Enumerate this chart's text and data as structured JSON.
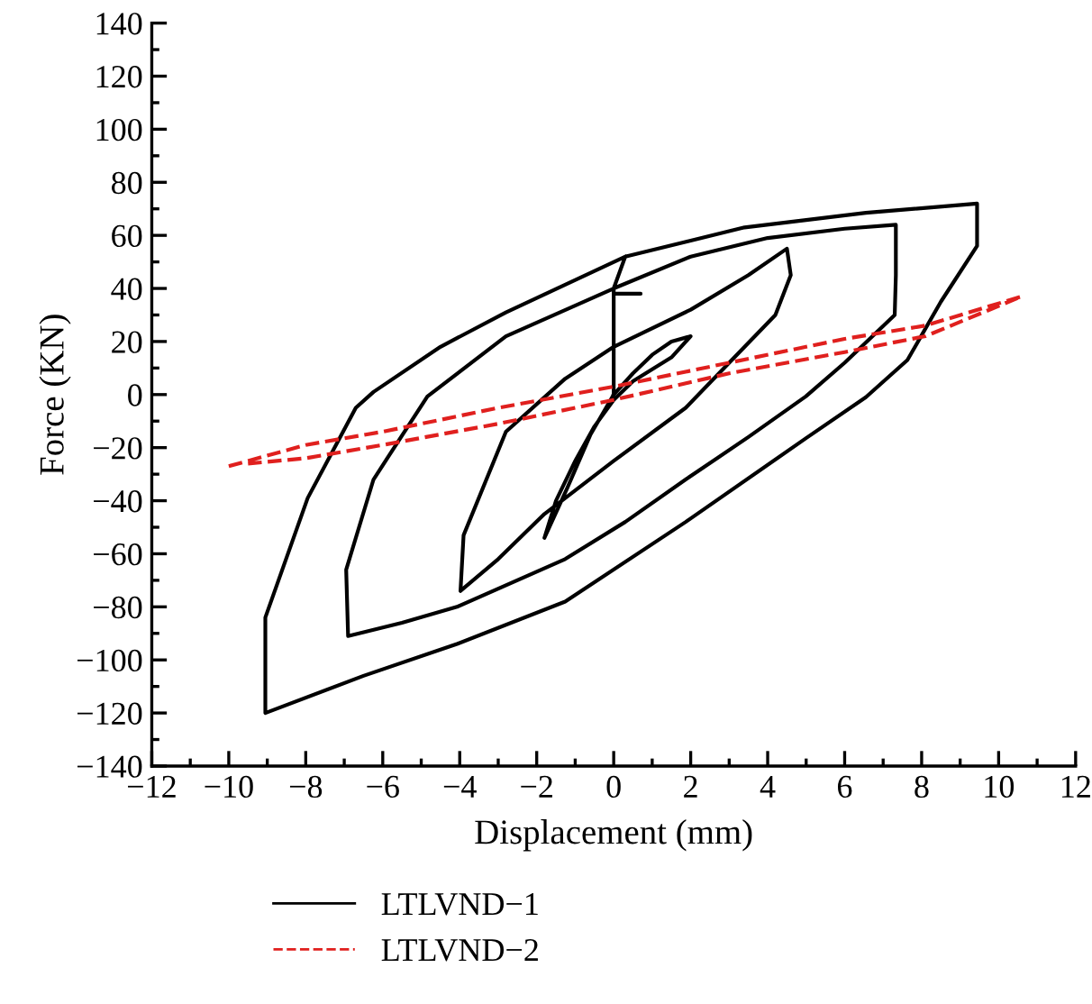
{
  "chart_data": {
    "type": "line",
    "xlabel": "Displacement (mm)",
    "ylabel": "Force (KN)",
    "xlim": [
      -12,
      12
    ],
    "xticks": [
      -12,
      -10,
      -8,
      -6,
      -4,
      -2,
      0,
      2,
      4,
      6,
      8,
      10,
      12
    ],
    "ylim": [
      -140,
      140
    ],
    "yticks": [
      -140,
      -120,
      -100,
      -80,
      -60,
      -40,
      -20,
      0,
      20,
      40,
      60,
      80,
      100,
      120,
      140
    ],
    "grid": false,
    "legend": "bottom",
    "marker": "none",
    "series": [
      {
        "name": "LTLVND−1",
        "color": "#000000",
        "line_style": "solid",
        "x": [
          0,
          0.5,
          1,
          1.5,
          2,
          1.5,
          0.5,
          0,
          -0.5,
          -1,
          -1.5,
          -1.8,
          -1.2,
          -0.6,
          0,
          0,
          2,
          3.5,
          4.5,
          4.6,
          4.2,
          3,
          1.87,
          0,
          -1.8,
          -3,
          -3.98,
          -3.9,
          -2.8,
          -1.26,
          0,
          0,
          0.7,
          0,
          0,
          2,
          4,
          6,
          7.33,
          7.33,
          7.3,
          6,
          4.99,
          3.5,
          1.87,
          0.3,
          -1.26,
          -4.07,
          -5.5,
          -6.9,
          -6.95,
          -6.24,
          -4.84,
          -2.8,
          0,
          0.3,
          3.4,
          6.55,
          9.44,
          9.44,
          8.5,
          7.63,
          6.55,
          4.99,
          1.87,
          -1.26,
          -4.07,
          -6.5,
          -9.05,
          -9.05,
          -7.95,
          -6.7,
          -6.24,
          -4.5,
          -2.8,
          0.3
        ],
        "values": [
          0,
          8,
          15,
          20,
          22,
          14,
          5,
          -2,
          -12,
          -25,
          -40,
          -54,
          -35,
          -15,
          0,
          18,
          32,
          45,
          55,
          45,
          30,
          12,
          -5,
          -25,
          -45,
          -62,
          -74,
          -53,
          -14,
          6,
          18,
          38,
          38,
          38,
          40,
          52,
          59,
          62.5,
          64,
          45,
          30,
          12,
          -0.7,
          -16,
          -32,
          -48,
          -62,
          -80,
          -86,
          -91,
          -66,
          -32,
          -0.7,
          22,
          40,
          52,
          63,
          68.5,
          72,
          56,
          35,
          13,
          -1,
          -16.5,
          -48,
          -78,
          -94,
          -106,
          -120,
          -84,
          -39,
          -5,
          1,
          18,
          31,
          52
        ]
      },
      {
        "name": "LTLVND−2",
        "color": "#e0201e",
        "line_style": "dashed",
        "x": [
          -10,
          -8,
          -6,
          -3,
          0,
          3,
          6,
          8.1,
          10.6,
          8.1,
          6,
          3,
          0,
          -3,
          -6,
          -8,
          -9.5
        ],
        "values": [
          -27,
          -19,
          -14,
          -5,
          3,
          12,
          21,
          26,
          37,
          22,
          16,
          8,
          -2,
          -11,
          -19,
          -24,
          -26
        ]
      }
    ]
  }
}
